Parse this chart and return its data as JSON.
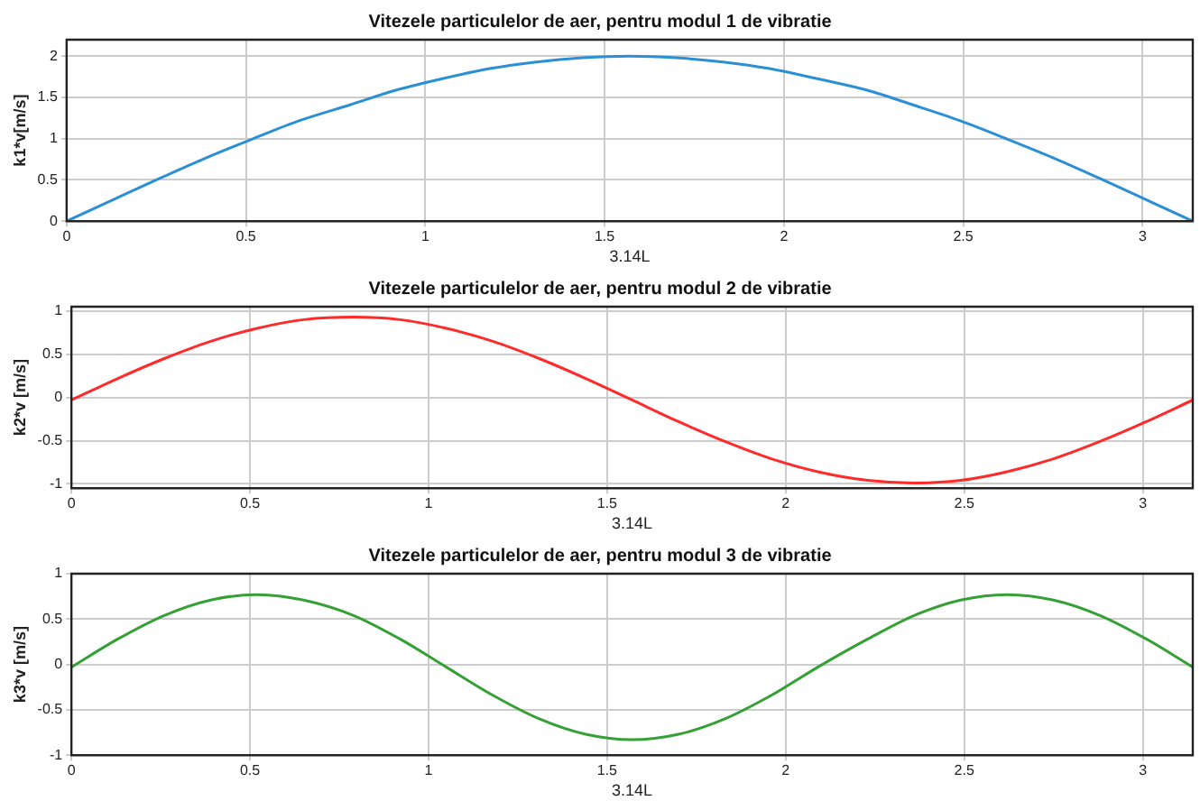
{
  "chart_data": [
    {
      "type": "line",
      "title": "Vitezele particulelor de aer, pentru modul 1 de vibratie",
      "xlabel": "3.14L",
      "ylabel": "k1*v[m/s]",
      "x": [
        0,
        0.13,
        0.26,
        0.39,
        0.52,
        0.65,
        0.79,
        0.92,
        1.05,
        1.18,
        1.31,
        1.44,
        1.57,
        1.7,
        1.83,
        1.96,
        2.09,
        2.23,
        2.36,
        2.49,
        2.62,
        2.75,
        2.88,
        3.01,
        3.14
      ],
      "series": [
        {
          "color": "#2b8fd6",
          "values": [
            0,
            0.26,
            0.52,
            0.77,
            1.0,
            1.22,
            1.41,
            1.59,
            1.73,
            1.85,
            1.93,
            1.98,
            2.0,
            1.98,
            1.93,
            1.85,
            1.73,
            1.59,
            1.41,
            1.22,
            1.0,
            0.77,
            0.52,
            0.26,
            0
          ]
        }
      ],
      "xlim": [
        0,
        3.14
      ],
      "xticks": [
        0,
        0.5,
        1,
        1.5,
        2,
        2.5,
        3
      ],
      "ylim": [
        0,
        2.2
      ],
      "yticks": [
        0,
        0.5,
        1,
        1.5,
        2
      ],
      "grid": true,
      "legend": false,
      "marker": "none",
      "line_style": "solid"
    },
    {
      "type": "line",
      "title": "Vitezele particulelor de aer, pentru modul 2 de vibratie",
      "xlabel": "3.14L",
      "ylabel": "k2*v [m/s]",
      "x": [
        0,
        0.13,
        0.26,
        0.39,
        0.52,
        0.65,
        0.79,
        0.92,
        1.05,
        1.18,
        1.31,
        1.44,
        1.57,
        1.7,
        1.83,
        1.96,
        2.09,
        2.23,
        2.36,
        2.49,
        2.62,
        2.75,
        2.88,
        3.01,
        3.14
      ],
      "series": [
        {
          "color": "#ff2a2a",
          "values": [
            -0.03,
            0.22,
            0.45,
            0.65,
            0.8,
            0.9,
            0.93,
            0.9,
            0.8,
            0.65,
            0.45,
            0.22,
            -0.03,
            -0.28,
            -0.51,
            -0.71,
            -0.86,
            -0.96,
            -0.99,
            -0.96,
            -0.86,
            -0.71,
            -0.51,
            -0.28,
            -0.03
          ]
        }
      ],
      "xlim": [
        0,
        3.14
      ],
      "xticks": [
        0,
        0.5,
        1,
        1.5,
        2,
        2.5,
        3
      ],
      "ylim": [
        -1.05,
        1.05
      ],
      "yticks": [
        -1,
        -0.5,
        0,
        0.5,
        1
      ],
      "grid": true,
      "legend": false,
      "marker": "none",
      "line_style": "solid"
    },
    {
      "type": "line",
      "title": "Vitezele particulelor de aer, pentru modul 3 de vibratie",
      "xlabel": "3.14L",
      "ylabel": "k3*v [m/s]",
      "x": [
        0,
        0.13,
        0.26,
        0.39,
        0.52,
        0.65,
        0.79,
        0.92,
        1.05,
        1.18,
        1.31,
        1.44,
        1.57,
        1.7,
        1.83,
        1.96,
        2.09,
        2.23,
        2.36,
        2.49,
        2.62,
        2.75,
        2.88,
        3.01,
        3.14
      ],
      "series": [
        {
          "color": "#35a035",
          "values": [
            -0.03,
            0.28,
            0.54,
            0.71,
            0.77,
            0.71,
            0.54,
            0.28,
            -0.03,
            -0.34,
            -0.6,
            -0.77,
            -0.83,
            -0.77,
            -0.6,
            -0.34,
            -0.03,
            0.28,
            0.54,
            0.71,
            0.77,
            0.71,
            0.54,
            0.28,
            -0.03
          ]
        }
      ],
      "xlim": [
        0,
        3.14
      ],
      "xticks": [
        0,
        0.5,
        1,
        1.5,
        2,
        2.5,
        3
      ],
      "ylim": [
        -1,
        1
      ],
      "yticks": [
        -1,
        -0.5,
        0,
        0.5,
        1
      ],
      "grid": true,
      "legend": false,
      "marker": "none",
      "line_style": "solid"
    }
  ]
}
